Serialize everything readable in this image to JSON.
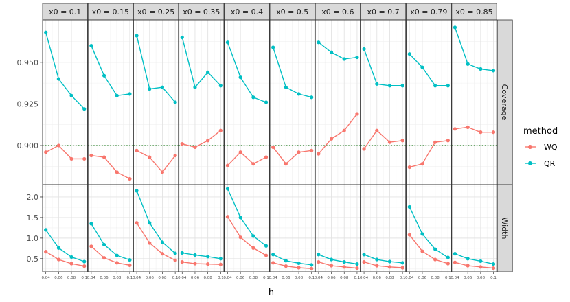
{
  "chart_data": {
    "type": "line",
    "facet_cols": [
      "x0 = 0.1",
      "x0 = 0.15",
      "x0 = 0.25",
      "x0 = 0.35",
      "x0 = 0.4",
      "x0 = 0.5",
      "x0 = 0.6",
      "x0 = 0.7",
      "x0 = 0.79",
      "x0 = 0.85"
    ],
    "facet_rows": [
      "Coverage",
      "Width"
    ],
    "xlabel": "h",
    "ylabel": "",
    "x_ticks": [
      0.04,
      0.06,
      0.08,
      0.1
    ],
    "x_tick_labels": [
      "0.04",
      "0.06",
      "0.08",
      "0.1"
    ],
    "x": [
      0.04,
      0.06,
      0.08,
      0.1
    ],
    "xlim": [
      0.035,
      0.105
    ],
    "grid": true,
    "legend_title": "method",
    "legend_position": "right",
    "series_meta": [
      {
        "name": "WQ",
        "color": "#F8766D"
      },
      {
        "name": "QR",
        "color": "#00BFC4"
      }
    ],
    "reference_line": {
      "row": "Coverage",
      "y": 0.9,
      "color": "#1a7a1a",
      "style": "dotted"
    },
    "rows": {
      "Coverage": {
        "ylim": [
          0.8765,
          0.9755
        ],
        "y_ticks": [
          0.9,
          0.925,
          0.95
        ],
        "y_tick_labels": [
          "0.900",
          "0.925",
          "0.950"
        ],
        "series": {
          "WQ": [
            [
              0.896,
              0.9,
              0.892,
              0.892
            ],
            [
              0.894,
              0.893,
              0.884,
              0.88
            ],
            [
              0.897,
              0.893,
              0.884,
              0.894
            ],
            [
              0.901,
              0.899,
              0.903,
              0.909
            ],
            [
              0.888,
              0.896,
              0.889,
              0.893
            ],
            [
              0.899,
              0.889,
              0.896,
              0.897
            ],
            [
              0.895,
              0.904,
              0.909,
              0.919
            ],
            [
              0.898,
              0.909,
              0.902,
              0.903
            ],
            [
              0.887,
              0.889,
              0.902,
              0.903
            ],
            [
              0.91,
              0.911,
              0.908,
              0.908
            ]
          ],
          "QR": [
            [
              0.968,
              0.94,
              0.93,
              0.922
            ],
            [
              0.96,
              0.942,
              0.93,
              0.931
            ],
            [
              0.966,
              0.934,
              0.935,
              0.926
            ],
            [
              0.965,
              0.935,
              0.944,
              0.936
            ],
            [
              0.962,
              0.941,
              0.929,
              0.926
            ],
            [
              0.959,
              0.935,
              0.931,
              0.929
            ],
            [
              0.962,
              0.956,
              0.952,
              0.953
            ],
            [
              0.958,
              0.937,
              0.936,
              0.936
            ],
            [
              0.955,
              0.947,
              0.936,
              0.936
            ],
            [
              0.971,
              0.949,
              0.946,
              0.945
            ]
          ]
        }
      },
      "Width": {
        "ylim": [
          0.18,
          2.3
        ],
        "y_ticks": [
          0.5,
          1.0,
          1.5,
          2.0
        ],
        "y_tick_labels": [
          "0.5",
          "1.0",
          "1.5",
          "2.0"
        ],
        "series": {
          "WQ": [
            [
              0.67,
              0.48,
              0.38,
              0.32
            ],
            [
              0.8,
              0.52,
              0.4,
              0.34
            ],
            [
              1.37,
              0.88,
              0.62,
              0.46
            ],
            [
              0.42,
              0.38,
              0.37,
              0.36
            ],
            [
              1.52,
              1.02,
              0.76,
              0.58
            ],
            [
              0.4,
              0.32,
              0.28,
              0.26
            ],
            [
              0.42,
              0.33,
              0.3,
              0.27
            ],
            [
              0.42,
              0.33,
              0.3,
              0.28
            ],
            [
              1.08,
              0.68,
              0.48,
              0.38
            ],
            [
              0.41,
              0.33,
              0.3,
              0.27
            ]
          ],
          "QR": [
            [
              1.2,
              0.76,
              0.54,
              0.43
            ],
            [
              1.35,
              0.84,
              0.58,
              0.47
            ],
            [
              2.15,
              1.37,
              0.9,
              0.63
            ],
            [
              0.64,
              0.59,
              0.55,
              0.5
            ],
            [
              2.2,
              1.5,
              1.05,
              0.81
            ],
            [
              0.6,
              0.45,
              0.39,
              0.35
            ],
            [
              0.6,
              0.48,
              0.42,
              0.37
            ],
            [
              0.6,
              0.48,
              0.43,
              0.4
            ],
            [
              1.76,
              1.1,
              0.73,
              0.53
            ],
            [
              0.62,
              0.5,
              0.44,
              0.37
            ]
          ]
        }
      }
    }
  }
}
